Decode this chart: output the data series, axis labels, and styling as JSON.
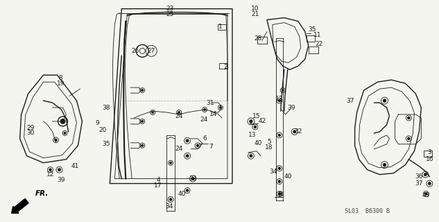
{
  "background_color": "#f5f5f0",
  "diagram_code": "SL03  B6300 B",
  "line_color": "#1a1a1a",
  "label_fontsize": 6.5,
  "diagram_fontsize": 6.0,
  "fig_w": 6.33,
  "fig_h": 3.2,
  "dpi": 100
}
